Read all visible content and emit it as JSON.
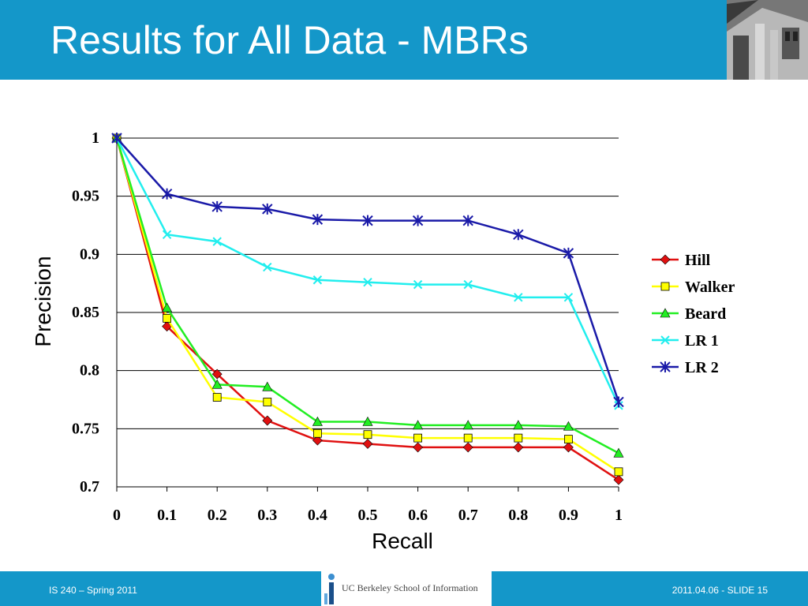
{
  "slide": {
    "title": "Results for All Data - MBRs",
    "footer_left": "IS 240 – Spring 2011",
    "footer_right": "2011.04.06 -  SLIDE 15",
    "logo_text": "UC Berkeley School of Information",
    "header_image": "building-photo"
  },
  "colors": {
    "header": "#1497c9",
    "hill": "#e01010",
    "walker": "#ffff00",
    "beard": "#22ee22",
    "lr1": "#22eeee",
    "lr2": "#1a1aa8"
  },
  "chart_data": {
    "type": "line",
    "title": "",
    "xlabel": "Recall",
    "ylabel": "Precision",
    "x": [
      0,
      0.1,
      0.2,
      0.3,
      0.4,
      0.5,
      0.6,
      0.7,
      0.8,
      0.9,
      1
    ],
    "x_tick_labels": [
      "0",
      "0.1",
      "0.2",
      "0.3",
      "0.4",
      "0.5",
      "0.6",
      "0.7",
      "0.8",
      "0.9",
      "1"
    ],
    "y_tick_labels": [
      "1",
      "0.95",
      "0.9",
      "0.85",
      "0.8",
      "0.75",
      "0.7"
    ],
    "y_ticks": [
      1,
      0.95,
      0.9,
      0.85,
      0.8,
      0.75,
      0.7
    ],
    "ylim": [
      0.7,
      1
    ],
    "xlim": [
      0,
      1
    ],
    "grid": "horizontal",
    "legend_position": "right",
    "series": [
      {
        "name": "Hill",
        "key": "hill",
        "marker": "diamond",
        "values": [
          1.0,
          0.838,
          0.797,
          0.757,
          0.74,
          0.737,
          0.734,
          0.734,
          0.734,
          0.734,
          0.706
        ]
      },
      {
        "name": "Walker",
        "key": "walker",
        "marker": "square",
        "values": [
          1.0,
          0.845,
          0.777,
          0.773,
          0.746,
          0.745,
          0.742,
          0.742,
          0.742,
          0.741,
          0.713
        ]
      },
      {
        "name": "Beard",
        "key": "beard",
        "marker": "triangle",
        "values": [
          1.0,
          0.854,
          0.788,
          0.786,
          0.756,
          0.756,
          0.753,
          0.753,
          0.753,
          0.752,
          0.729
        ]
      },
      {
        "name": "LR 1",
        "key": "lr1",
        "marker": "x",
        "values": [
          1.0,
          0.917,
          0.911,
          0.889,
          0.878,
          0.876,
          0.874,
          0.874,
          0.863,
          0.863,
          0.77
        ]
      },
      {
        "name": "LR 2",
        "key": "lr2",
        "marker": "star",
        "values": [
          1.0,
          0.952,
          0.941,
          0.939,
          0.93,
          0.929,
          0.929,
          0.929,
          0.917,
          0.901,
          0.773
        ]
      }
    ]
  }
}
